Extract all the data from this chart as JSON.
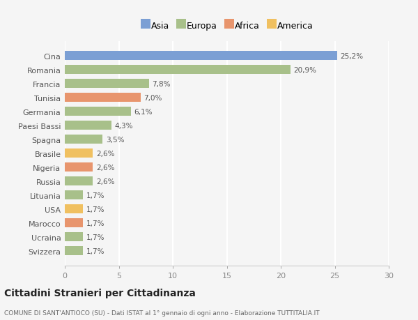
{
  "categories": [
    "Svizzera",
    "Ucraina",
    "Marocco",
    "USA",
    "Lituania",
    "Russia",
    "Nigeria",
    "Brasile",
    "Spagna",
    "Paesi Bassi",
    "Germania",
    "Tunisia",
    "Francia",
    "Romania",
    "Cina"
  ],
  "values": [
    1.7,
    1.7,
    1.7,
    1.7,
    1.7,
    2.6,
    2.6,
    2.6,
    3.5,
    4.3,
    6.1,
    7.0,
    7.8,
    20.9,
    25.2
  ],
  "labels": [
    "1,7%",
    "1,7%",
    "1,7%",
    "1,7%",
    "1,7%",
    "2,6%",
    "2,6%",
    "2,6%",
    "3,5%",
    "4,3%",
    "6,1%",
    "7,0%",
    "7,8%",
    "20,9%",
    "25,2%"
  ],
  "colors": [
    "#a8c08a",
    "#a8c08a",
    "#e8956d",
    "#f0c060",
    "#a8c08a",
    "#a8c08a",
    "#e8956d",
    "#f0c060",
    "#a8c08a",
    "#a8c08a",
    "#a8c08a",
    "#e8956d",
    "#a8c08a",
    "#a8c08a",
    "#7b9fd4"
  ],
  "legend_labels": [
    "Asia",
    "Europa",
    "Africa",
    "America"
  ],
  "legend_colors": [
    "#7b9fd4",
    "#a8c08a",
    "#e8956d",
    "#f0c060"
  ],
  "title": "Cittadini Stranieri per Cittadinanza",
  "subtitle": "COMUNE DI SANT'ANTIOCO (SU) - Dati ISTAT al 1° gennaio di ogni anno - Elaborazione TUTTITALIA.IT",
  "xlim": [
    0,
    30
  ],
  "xticks": [
    0,
    5,
    10,
    15,
    20,
    25,
    30
  ],
  "background_color": "#f5f5f5",
  "bar_height": 0.65
}
